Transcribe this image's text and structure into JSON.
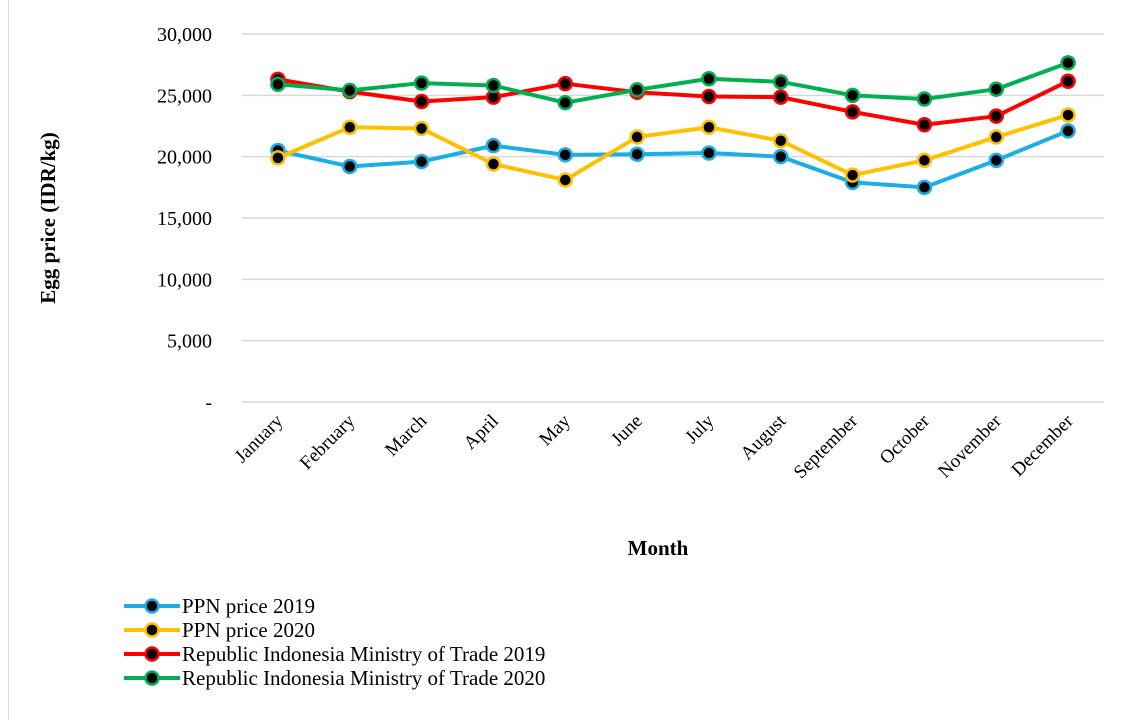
{
  "chart_data": {
    "type": "line",
    "title": "",
    "xlabel": "Month",
    "ylabel": "Egg price (IDR/kg)",
    "ylim": [
      0,
      30000
    ],
    "yticks": [
      {
        "value": 0,
        "label": "-"
      },
      {
        "value": 5000,
        "label": "5,000"
      },
      {
        "value": 10000,
        "label": "10,000"
      },
      {
        "value": 15000,
        "label": "15,000"
      },
      {
        "value": 20000,
        "label": "20,000"
      },
      {
        "value": 25000,
        "label": "25,000"
      },
      {
        "value": 30000,
        "label": "30,000"
      }
    ],
    "grid": true,
    "legend_position": "bottom-left",
    "categories": [
      "January",
      "February",
      "March",
      "April",
      "May",
      "June",
      "July",
      "August",
      "September",
      "October",
      "November",
      "December"
    ],
    "series": [
      {
        "name": "PPN price 2019",
        "color": "#1aaee5",
        "values": [
          20500,
          19200,
          19600,
          20900,
          20150,
          20200,
          20300,
          20000,
          17900,
          17500,
          19700,
          22100
        ]
      },
      {
        "name": "PPN price 2020",
        "color": "#ffc000",
        "values": [
          19900,
          22400,
          22300,
          19400,
          18100,
          21600,
          22400,
          21300,
          18500,
          19700,
          21600,
          23400
        ]
      },
      {
        "name": "Republic Indonesia Ministry of Trade 2019",
        "color": "#ff0000",
        "values": [
          26300,
          25300,
          24500,
          24850,
          25950,
          25250,
          24900,
          24850,
          23650,
          22600,
          23300,
          26150
        ]
      },
      {
        "name": "Republic Indonesia Ministry of Trade 2020",
        "color": "#00b050",
        "values": [
          25900,
          25400,
          26000,
          25800,
          24400,
          25450,
          26350,
          26100,
          25000,
          24700,
          25500,
          27650
        ]
      }
    ]
  }
}
